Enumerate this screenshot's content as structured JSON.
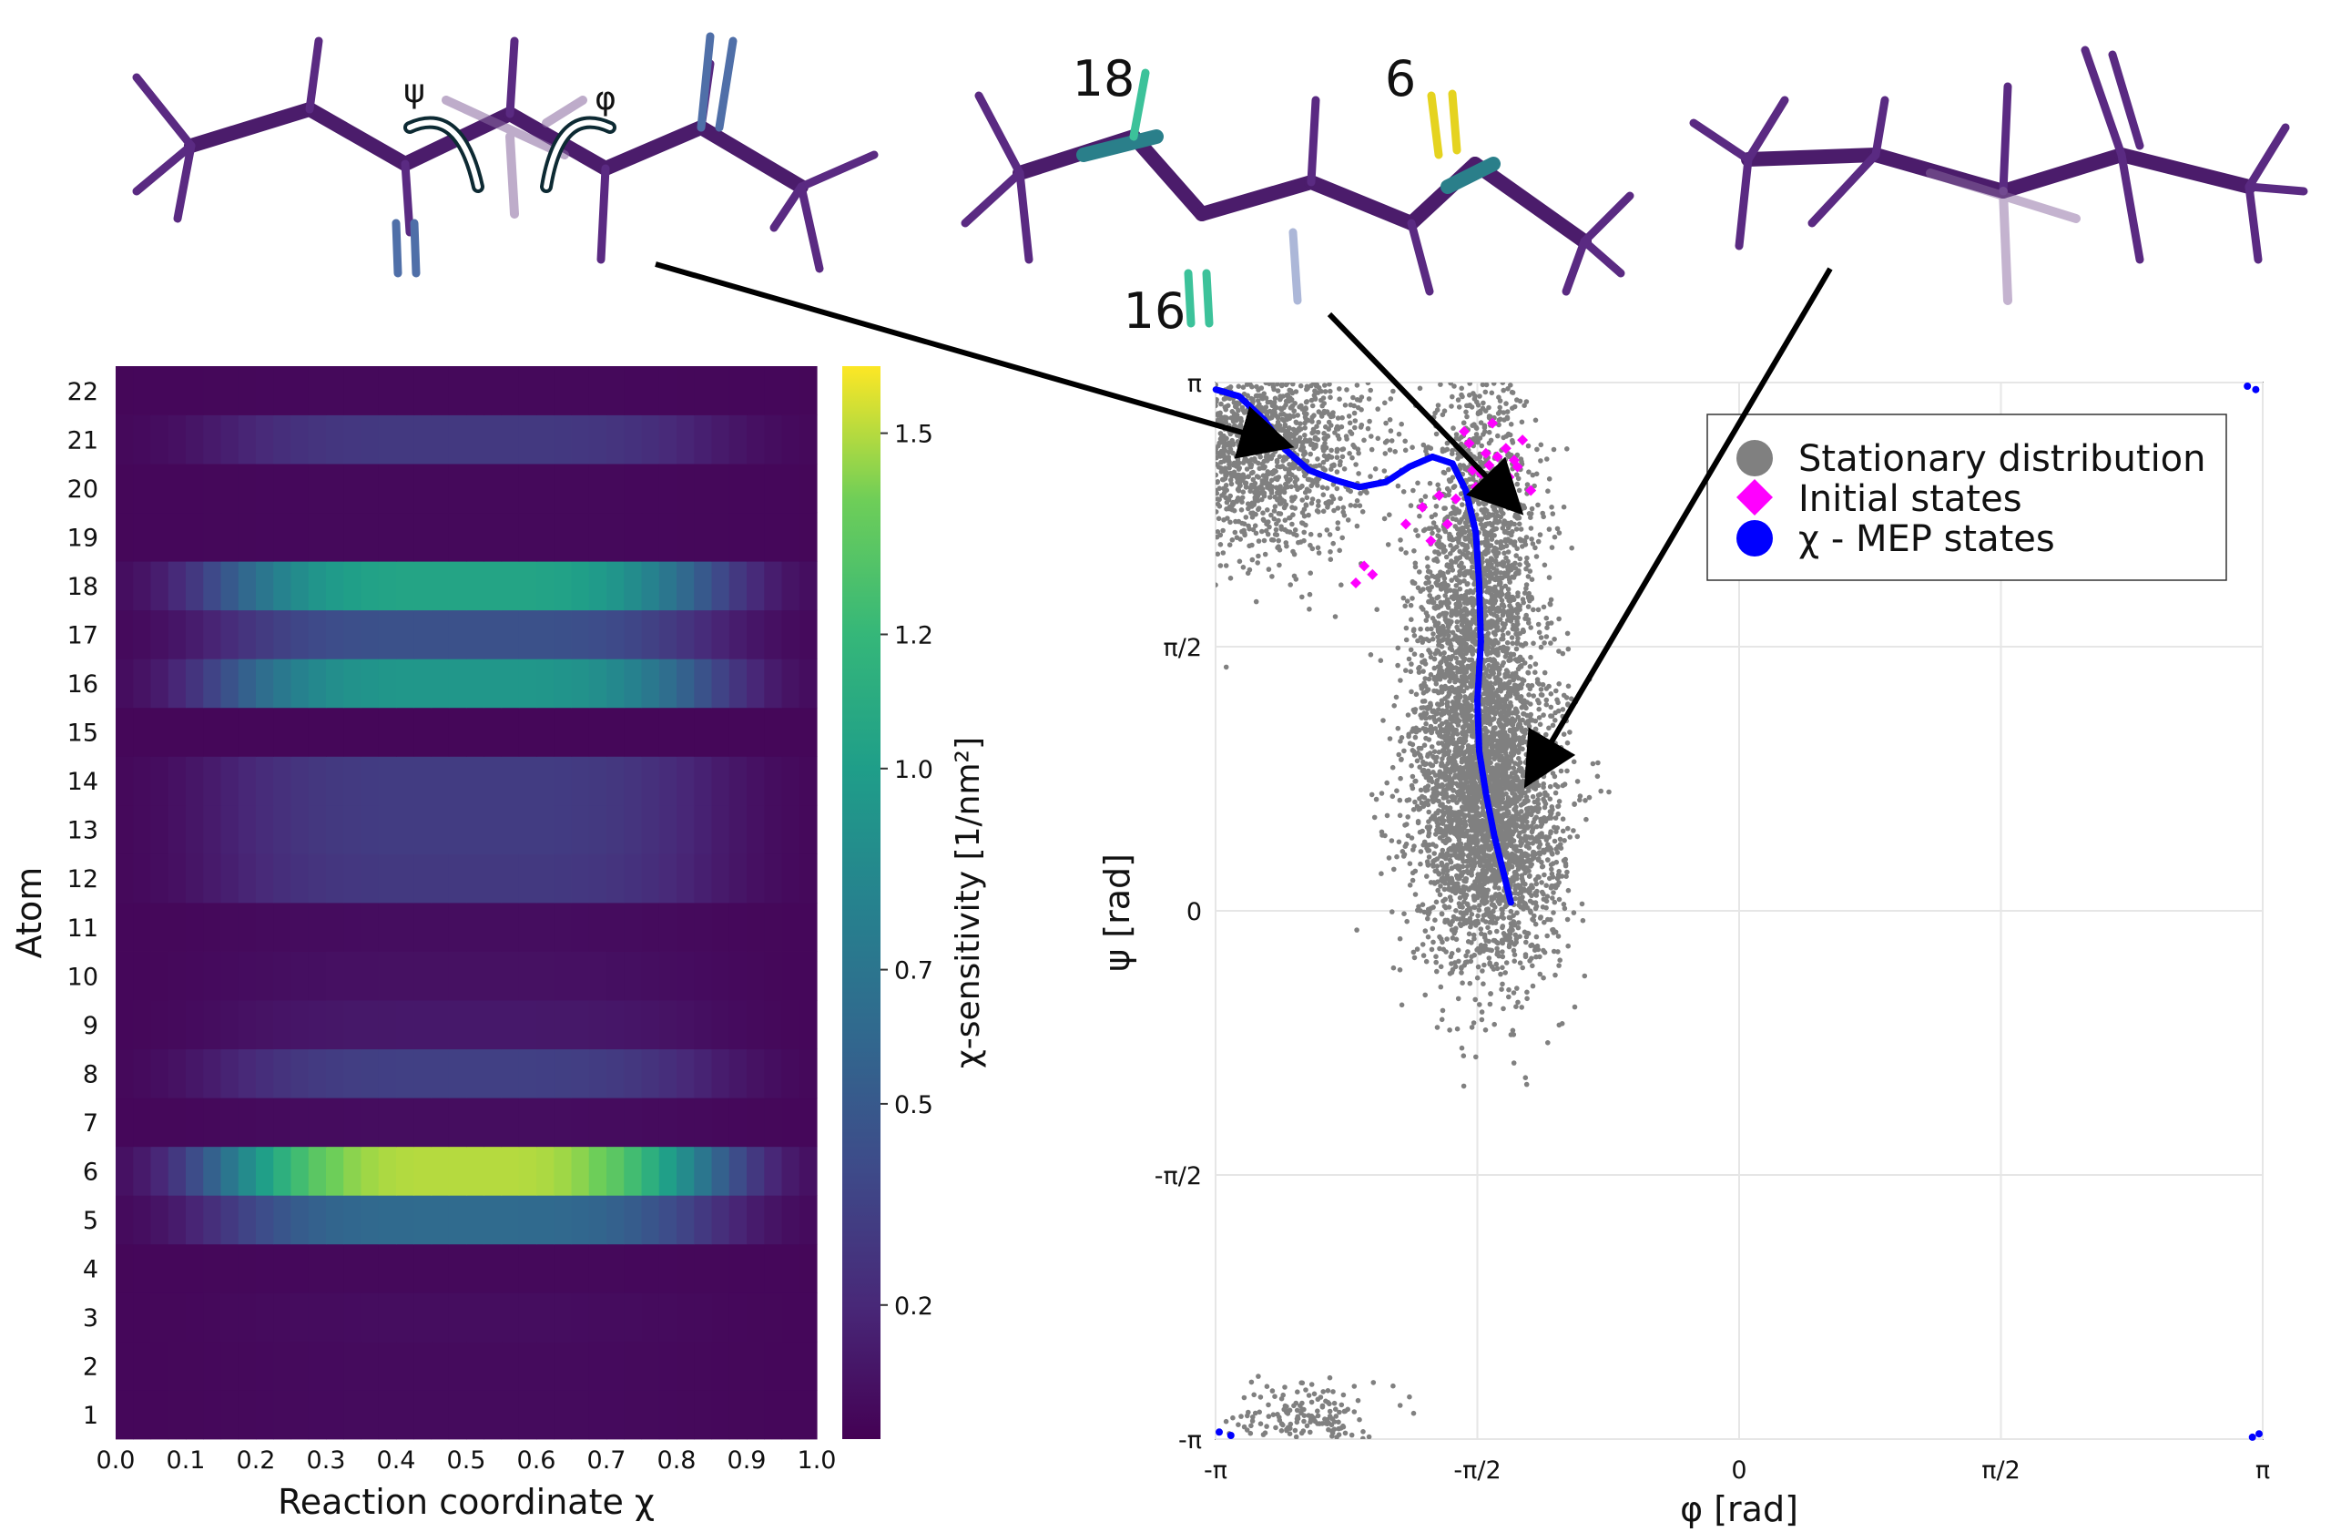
{
  "molecules": {
    "left": {
      "labels": [
        "ψ",
        "φ"
      ]
    },
    "middle": {
      "labels": [
        "18",
        "6",
        "16"
      ]
    }
  },
  "chart_data": [
    {
      "type": "heatmap",
      "ylabel": "Atom",
      "xlabel": "Reaction coordinate χ",
      "colorbar_label": "χ-sensitivity [1/nm²]",
      "colormap": "viridis",
      "x_ticks": [
        "0.0",
        "0.1",
        "0.2",
        "0.3",
        "0.4",
        "0.5",
        "0.6",
        "0.7",
        "0.8",
        "0.9",
        "1.0"
      ],
      "y_ticks": [
        "1",
        "2",
        "3",
        "4",
        "5",
        "6",
        "7",
        "8",
        "9",
        "10",
        "11",
        "12",
        "13",
        "14",
        "15",
        "16",
        "17",
        "18",
        "19",
        "20",
        "21",
        "22"
      ],
      "colorbar_ticks": [
        "0.2",
        "0.5",
        "0.7",
        "1.0",
        "1.2",
        "1.5"
      ],
      "colorbar_tick_values": [
        0.2,
        0.5,
        0.7,
        1.0,
        1.2,
        1.5
      ],
      "xlim": [
        0,
        1
      ],
      "clim": [
        0,
        1.6
      ],
      "atom_peaks": [
        0.05,
        0.05,
        0.06,
        0.04,
        0.62,
        1.5,
        0.06,
        0.34,
        0.12,
        0.08,
        0.06,
        0.3,
        0.32,
        0.32,
        0.03,
        0.95,
        0.45,
        1.05,
        0.04,
        0.04,
        0.3,
        0.04
      ]
    },
    {
      "type": "scatter",
      "xlabel": "φ [rad]",
      "ylabel": "ψ [rad]",
      "xlim": [
        -3.1416,
        3.1416
      ],
      "ylim": [
        -3.1416,
        3.1416
      ],
      "x_ticks": [
        "-π",
        "-π/2",
        "0",
        "π/2",
        "π"
      ],
      "y_ticks": [
        "π",
        "π/2",
        "0",
        "-π/2",
        "-π"
      ],
      "grid": true,
      "legend_position": "top-right",
      "series": [
        {
          "name": "Stationary distribution",
          "color": "#808080",
          "marker": "circle",
          "clusters": [
            {
              "cx": -2.9,
              "cy": 2.8,
              "sx": 0.35,
              "sy": 0.35,
              "n": 1800
            },
            {
              "cx": -1.55,
              "cy": 2.05,
              "sx": 0.18,
              "sy": 0.6,
              "n": 1500
            },
            {
              "cx": -1.5,
              "cy": 0.55,
              "sx": 0.22,
              "sy": 0.45,
              "n": 2600
            },
            {
              "cx": -1.6,
              "cy": 1.3,
              "sx": 0.18,
              "sy": 0.5,
              "n": 900
            },
            {
              "cx": -2.6,
              "cy": -3.0,
              "sx": 0.2,
              "sy": 0.1,
              "n": 160
            }
          ]
        },
        {
          "name": "Initial states",
          "color": "#ff00ff",
          "marker": "diamond",
          "x": [
            -1.45,
            -1.5,
            -1.4,
            -1.55,
            -1.35,
            -1.3,
            -1.48,
            -1.42,
            -1.6,
            -1.25,
            -1.52,
            -1.38,
            -1.65,
            -1.7,
            -1.8,
            -1.75,
            -2.0,
            -1.9,
            -1.85,
            -2.25,
            -2.3,
            -2.2,
            -1.62,
            -1.58,
            -1.45,
            -1.33
          ],
          "y": [
            2.7,
            2.65,
            2.75,
            2.6,
            2.68,
            2.8,
            2.9,
            2.55,
            2.62,
            2.5,
            2.72,
            2.58,
            2.85,
            2.45,
            2.47,
            2.3,
            2.3,
            2.4,
            2.2,
            2.05,
            1.95,
            2.0,
            2.78,
            2.52,
            2.6,
            2.64
          ]
        },
        {
          "name": "χ - MEP states",
          "color": "#0000ff",
          "marker": "circle",
          "x": [
            -3.14,
            -3.0,
            -2.85,
            -2.72,
            -2.58,
            -2.42,
            -2.28,
            -2.12,
            -1.98,
            -1.84,
            -1.72,
            -1.64,
            -1.58,
            -1.56,
            -1.55,
            -1.57,
            -1.56,
            -1.52,
            -1.47,
            -1.42,
            -1.37
          ],
          "y": [
            3.1,
            3.06,
            2.92,
            2.74,
            2.62,
            2.56,
            2.52,
            2.55,
            2.64,
            2.7,
            2.66,
            2.5,
            2.25,
            1.95,
            1.6,
            1.25,
            0.95,
            0.7,
            0.45,
            0.25,
            0.05
          ]
        }
      ]
    }
  ]
}
